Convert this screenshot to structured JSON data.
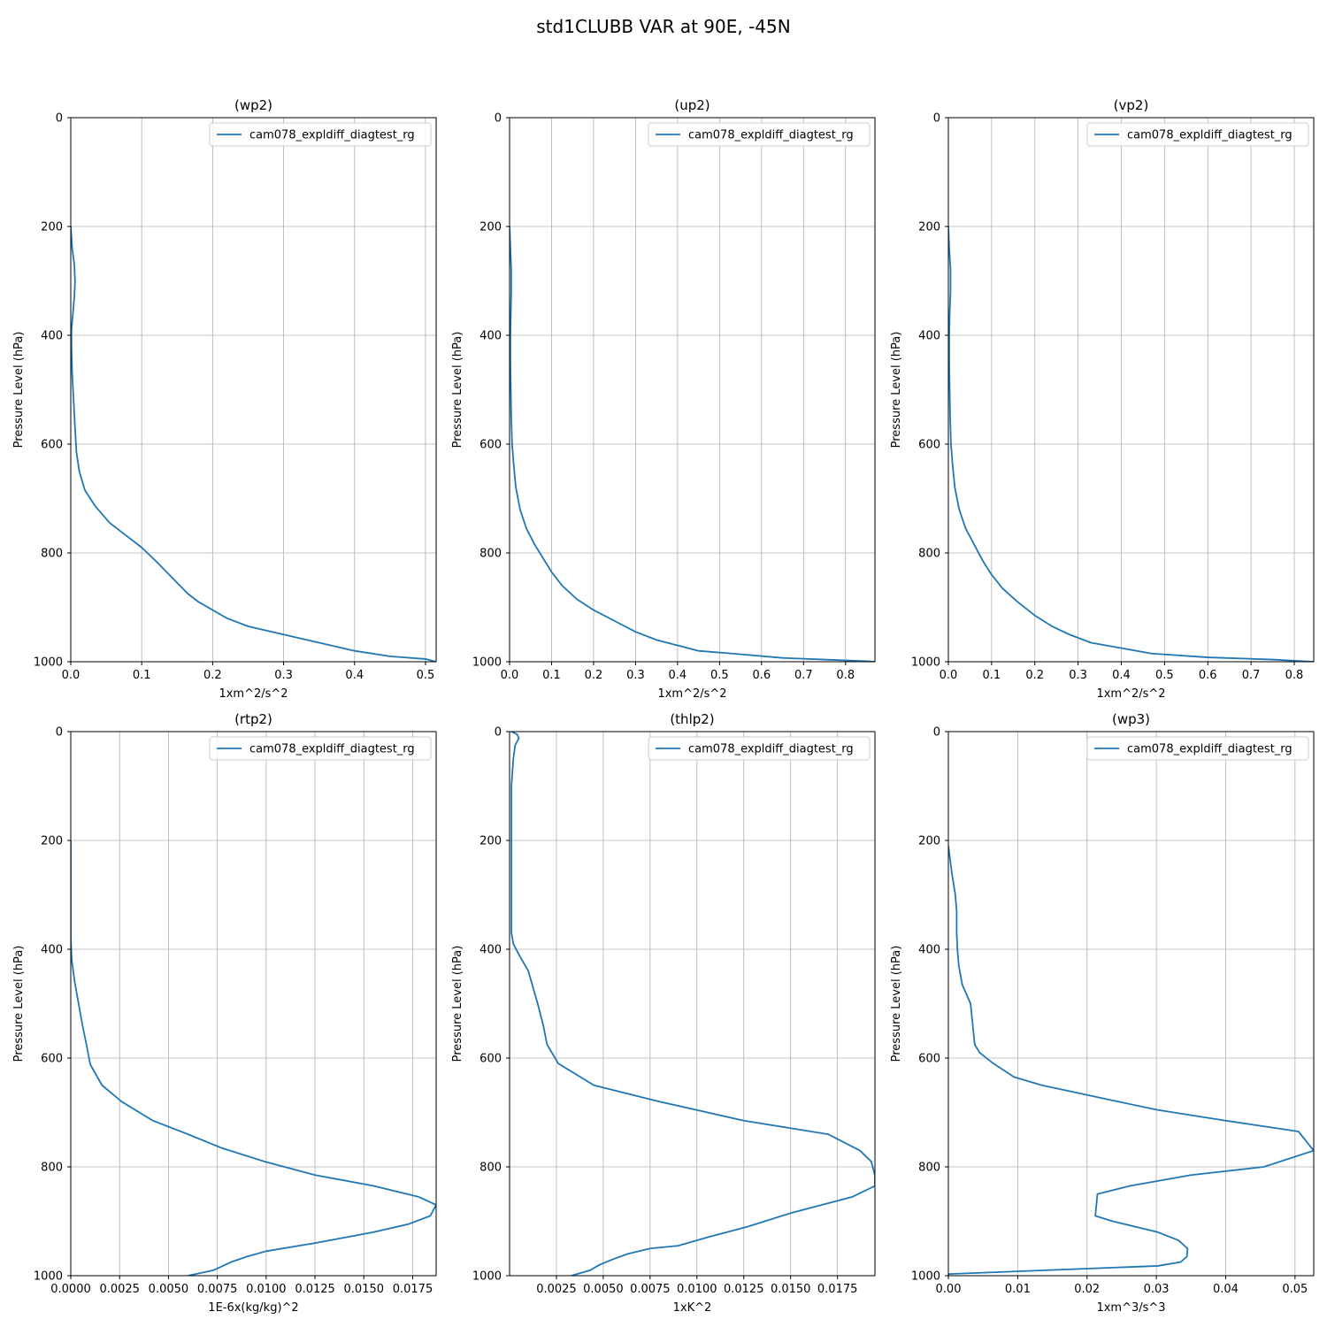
{
  "figure": {
    "title": "std1CLUBB VAR at 90E, -45N",
    "line_color": "#1f77b4",
    "grid_color": "#b0b0b0"
  },
  "chart_data": [
    {
      "type": "line",
      "title": "(wp2)",
      "xlabel": "1xm^2/s^2",
      "ylabel": "Pressure Level (hPa)",
      "xlim": [
        0,
        0.515
      ],
      "ylim": [
        1000,
        0
      ],
      "y_inverted": true,
      "xticks": [
        0,
        0.1,
        0.2,
        0.3,
        0.4,
        0.5
      ],
      "xtick_labels": [
        "0.0",
        "0.1",
        "0.2",
        "0.3",
        "0.4",
        "0.5"
      ],
      "yticks": [
        0,
        200,
        400,
        600,
        800,
        1000
      ],
      "grid": true,
      "legend": "upper right",
      "series": [
        {
          "name": "cam078_expldiff_diagtest_rg",
          "x": [
            0,
            0.002,
            0.005,
            0.006,
            0.005,
            0.003,
            0.001,
            0.001,
            0.002,
            0.004,
            0.006,
            0.008,
            0.012,
            0.02,
            0.035,
            0.055,
            0.08,
            0.1,
            0.12,
            0.135,
            0.15,
            0.165,
            0.18,
            0.2,
            0.22,
            0.25,
            0.3,
            0.35,
            0.4,
            0.45,
            0.5,
            0.515
          ],
          "y": [
            200,
            240,
            270,
            300,
            330,
            360,
            390,
            420,
            470,
            520,
            570,
            615,
            650,
            685,
            715,
            745,
            770,
            790,
            815,
            835,
            855,
            875,
            890,
            905,
            920,
            935,
            950,
            965,
            980,
            990,
            995,
            1000
          ]
        }
      ]
    },
    {
      "type": "line",
      "title": "(up2)",
      "xlabel": "1xm^2/s^2",
      "ylabel": "Pressure Level (hPa)",
      "xlim": [
        0,
        0.87
      ],
      "ylim": [
        1000,
        0
      ],
      "y_inverted": true,
      "xticks": [
        0,
        0.1,
        0.2,
        0.3,
        0.4,
        0.5,
        0.6,
        0.7,
        0.8
      ],
      "xtick_labels": [
        "0.0",
        "0.1",
        "0.2",
        "0.3",
        "0.4",
        "0.5",
        "0.6",
        "0.7",
        "0.8"
      ],
      "yticks": [
        0,
        200,
        400,
        600,
        800,
        1000
      ],
      "grid": true,
      "legend": "upper right",
      "series": [
        {
          "name": "cam078_expldiff_diagtest_rg",
          "x": [
            0,
            0.002,
            0.004,
            0.004,
            0.003,
            0.002,
            0.002,
            0.003,
            0.004,
            0.006,
            0.01,
            0.015,
            0.025,
            0.04,
            0.06,
            0.08,
            0.1,
            0.125,
            0.16,
            0.2,
            0.25,
            0.3,
            0.35,
            0.4,
            0.45,
            0.53,
            0.65,
            0.75,
            0.85,
            0.87
          ],
          "y": [
            200,
            240,
            280,
            320,
            360,
            400,
            450,
            500,
            550,
            600,
            640,
            680,
            720,
            755,
            785,
            810,
            835,
            860,
            885,
            905,
            925,
            945,
            960,
            970,
            980,
            985,
            993,
            996,
            999,
            1000
          ]
        }
      ]
    },
    {
      "type": "line",
      "title": "(vp2)",
      "xlabel": "1xm^2/s^2",
      "ylabel": "Pressure Level (hPa)",
      "xlim": [
        0,
        0.845
      ],
      "ylim": [
        1000,
        0
      ],
      "y_inverted": true,
      "xticks": [
        0,
        0.1,
        0.2,
        0.3,
        0.4,
        0.5,
        0.6,
        0.7,
        0.8
      ],
      "xtick_labels": [
        "0.0",
        "0.1",
        "0.2",
        "0.3",
        "0.4",
        "0.5",
        "0.6",
        "0.7",
        "0.8"
      ],
      "yticks": [
        0,
        200,
        400,
        600,
        800,
        1000
      ],
      "grid": true,
      "legend": "upper right",
      "series": [
        {
          "name": "cam078_expldiff_diagtest_rg",
          "x": [
            0,
            0.002,
            0.005,
            0.005,
            0.003,
            0.002,
            0.002,
            0.003,
            0.004,
            0.006,
            0.01,
            0.015,
            0.025,
            0.04,
            0.06,
            0.08,
            0.1,
            0.125,
            0.16,
            0.2,
            0.24,
            0.28,
            0.33,
            0.4,
            0.47,
            0.6,
            0.75,
            0.845
          ],
          "y": [
            200,
            240,
            280,
            320,
            360,
            400,
            450,
            500,
            550,
            600,
            640,
            680,
            720,
            755,
            785,
            815,
            840,
            865,
            890,
            915,
            935,
            950,
            965,
            975,
            985,
            992,
            996,
            1000
          ]
        }
      ]
    },
    {
      "type": "line",
      "title": "(rtp2)",
      "xlabel": "1E-6x(kg/kg)^2",
      "ylabel": "Pressure Level (hPa)",
      "xlim": [
        0,
        0.0187
      ],
      "ylim": [
        1000,
        0
      ],
      "y_inverted": true,
      "xticks": [
        0,
        0.0025,
        0.005,
        0.0075,
        0.01,
        0.0125,
        0.015,
        0.0175
      ],
      "xtick_labels": [
        "0.0000",
        "0.0025",
        "0.0050",
        "0.0075",
        "0.0100",
        "0.0125",
        "0.0150",
        "0.0175"
      ],
      "yticks": [
        0,
        200,
        400,
        600,
        800,
        1000
      ],
      "grid": true,
      "legend": "upper right",
      "series": [
        {
          "name": "cam078_expldiff_diagtest_rg",
          "x": [
            0.0,
            0.0,
            0.0,
            5e-05,
            0.0002,
            0.0004,
            0.0006,
            0.0008,
            0.001,
            0.0016,
            0.0026,
            0.0042,
            0.006,
            0.0077,
            0.0099,
            0.0125,
            0.0155,
            0.0178,
            0.0187,
            0.0184,
            0.0173,
            0.0155,
            0.0125,
            0.01,
            0.009,
            0.0082,
            0.0076,
            0.0073,
            0.006
          ],
          "y": [
            200,
            300,
            380,
            420,
            460,
            500,
            540,
            575,
            612,
            650,
            680,
            715,
            740,
            765,
            790,
            815,
            835,
            855,
            870,
            890,
            905,
            920,
            940,
            955,
            965,
            975,
            985,
            990,
            1000
          ]
        }
      ]
    },
    {
      "type": "line",
      "title": "(thlp2)",
      "xlabel": "1xK^2",
      "ylabel": "Pressure Level (hPa)",
      "xlim": [
        0,
        0.0195
      ],
      "ylim": [
        1000,
        0
      ],
      "y_inverted": true,
      "xticks": [
        0.0025,
        0.005,
        0.0075,
        0.01,
        0.0125,
        0.015,
        0.0175
      ],
      "xtick_labels": [
        "0.0025",
        "0.0050",
        "0.0075",
        "0.0100",
        "0.0125",
        "0.0150",
        "0.0175"
      ],
      "yticks": [
        0,
        200,
        400,
        600,
        800,
        1000
      ],
      "grid": true,
      "legend": "upper right",
      "series": [
        {
          "name": "cam078_expldiff_diagtest_rg",
          "x": [
            0.0001,
            0.0004,
            0.0005,
            0.0003,
            0.0002,
            0.0001,
            0.0001,
            0.0001,
            0.0001,
            0.0001,
            0.0001,
            0.0002,
            0.0005,
            0.001,
            0.0015,
            0.0018,
            0.002,
            0.0026,
            0.0045,
            0.008,
            0.0125,
            0.017,
            0.0187,
            0.0193,
            0.0195,
            0.0195,
            0.0183,
            0.015,
            0.0127,
            0.0105,
            0.009,
            0.0075,
            0.0063,
            0.0055,
            0.0048,
            0.0043,
            0.0033
          ],
          "y": [
            0,
            5,
            12,
            25,
            50,
            100,
            200,
            250,
            300,
            350,
            370,
            390,
            410,
            440,
            500,
            540,
            575,
            610,
            650,
            680,
            715,
            740,
            770,
            790,
            815,
            835,
            855,
            885,
            910,
            930,
            945,
            950,
            960,
            970,
            980,
            990,
            1000
          ]
        }
      ]
    },
    {
      "type": "line",
      "title": "(wp3)",
      "xlabel": "1xm^3/s^3",
      "ylabel": "Pressure Level (hPa)",
      "xlim": [
        0,
        0.0527
      ],
      "ylim": [
        1000,
        0
      ],
      "y_inverted": true,
      "xticks": [
        0,
        0.01,
        0.02,
        0.03,
        0.04,
        0.05
      ],
      "xtick_labels": [
        "0.00",
        "0.01",
        "0.02",
        "0.03",
        "0.04",
        "0.05"
      ],
      "yticks": [
        0,
        200,
        400,
        600,
        800,
        1000
      ],
      "grid": true,
      "legend": "upper right",
      "series": [
        {
          "name": "cam078_expldiff_diagtest_rg",
          "x": [
            0.0,
            0.0005,
            0.001,
            0.0012,
            0.0012,
            0.0013,
            0.0015,
            0.002,
            0.0032,
            0.0038,
            0.0045,
            0.0065,
            0.0095,
            0.0135,
            0.0245,
            0.03,
            0.04,
            0.0505,
            0.0527,
            0.0455,
            0.035,
            0.0262,
            0.0215,
            0.0212,
            0.0237,
            0.0302,
            0.0332,
            0.0345,
            0.0344,
            0.0335,
            0.0302,
            0.0,
            0.0
          ],
          "y": [
            210,
            260,
            300,
            330,
            370,
            400,
            430,
            465,
            500,
            575,
            590,
            610,
            635,
            650,
            680,
            695,
            715,
            735,
            770,
            800,
            815,
            835,
            850,
            890,
            900,
            920,
            935,
            950,
            965,
            975,
            982,
            997,
            1000
          ]
        }
      ]
    }
  ]
}
